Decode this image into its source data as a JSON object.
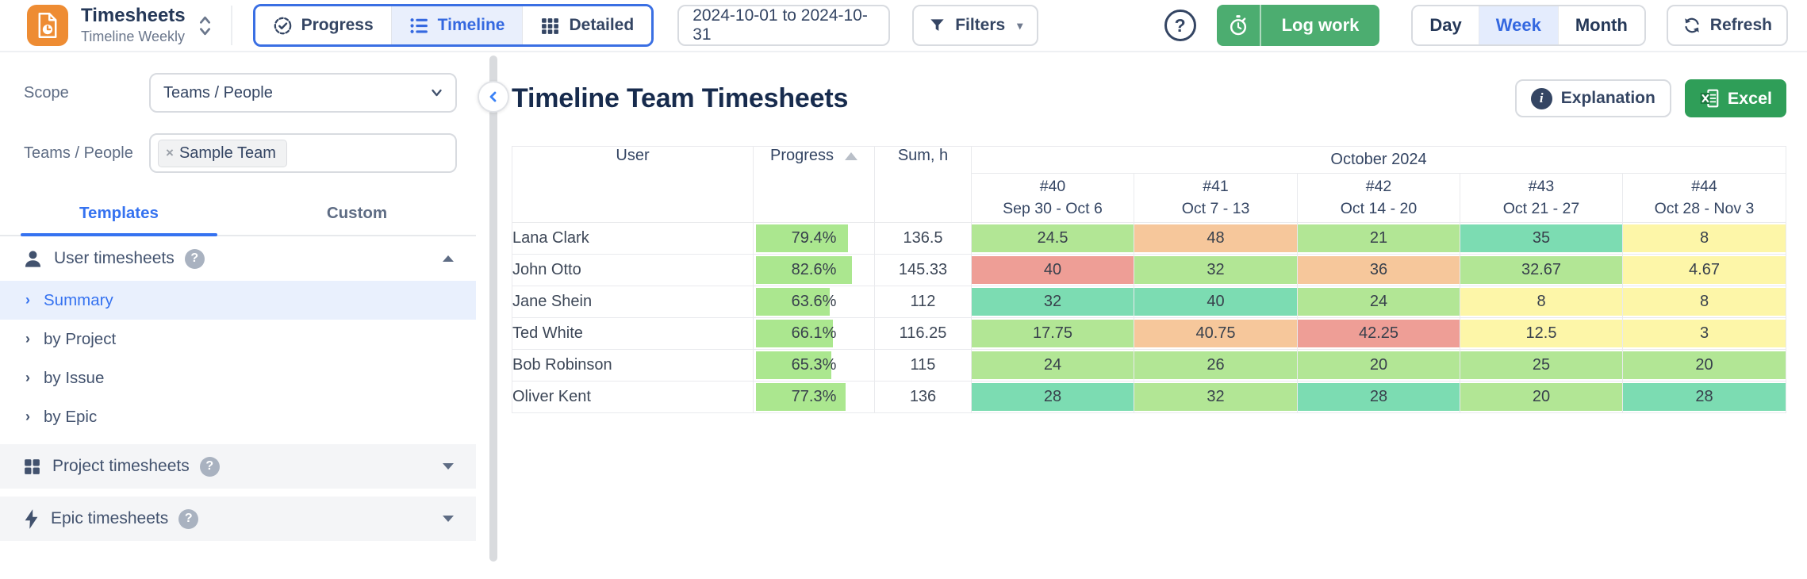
{
  "app": {
    "title": "Timesheets",
    "subtitle": "Timeline Weekly"
  },
  "topbar": {
    "views": [
      {
        "label": "Progress"
      },
      {
        "label": "Timeline"
      },
      {
        "label": "Detailed"
      }
    ],
    "date_range": "2024-10-01 to 2024-10-31",
    "filters_label": "Filters",
    "log_work_label": "Log work",
    "periods": [
      {
        "label": "Day"
      },
      {
        "label": "Week"
      },
      {
        "label": "Month"
      }
    ],
    "period_selected": "Week",
    "refresh_label": "Refresh",
    "help_glyph": "?"
  },
  "sidebar": {
    "scope_label": "Scope",
    "scope_value": "Teams / People",
    "teams_label": "Teams / People",
    "team_chip": "Sample Team",
    "chip_remove_glyph": "×",
    "tabs": [
      {
        "label": "Templates"
      },
      {
        "label": "Custom"
      }
    ],
    "active_tab": "Templates",
    "sections": [
      {
        "label": "User timesheets",
        "help_glyph": "?"
      },
      {
        "label": "Project timesheets",
        "help_glyph": "?"
      },
      {
        "label": "Epic timesheets",
        "help_glyph": "?"
      }
    ],
    "user_items": [
      {
        "label": "Summary",
        "selected": true
      },
      {
        "label": "by Project"
      },
      {
        "label": "by Issue"
      },
      {
        "label": "by Epic"
      }
    ],
    "item_chevron_glyph": "›"
  },
  "main": {
    "title": "Timeline Team Timesheets",
    "explanation_label": "Explanation",
    "excel_label": "Excel"
  },
  "table": {
    "columns": {
      "user": "User",
      "progress": "Progress",
      "sum": "Sum, h"
    },
    "month_header": "October 2024",
    "weeks": [
      {
        "num": "#40",
        "range": "Sep 30 - Oct 6"
      },
      {
        "num": "#41",
        "range": "Oct 7 - 13"
      },
      {
        "num": "#42",
        "range": "Oct 14 - 20"
      },
      {
        "num": "#43",
        "range": "Oct 21 - 27"
      },
      {
        "num": "#44",
        "range": "Oct 28 - Nov 3"
      }
    ],
    "cell_colors": {
      "light_green": "#b2e695",
      "teal": "#7cdcb2",
      "orange": "#f6c79b",
      "red": "#ee9e96",
      "yellow": "#fdf6a8",
      "progress_bar": "#abe78f"
    },
    "rows": [
      {
        "user": "Lana Clark",
        "progress": "79.4%",
        "progress_pct": "79.4",
        "sum": "136.5",
        "cells": [
          {
            "v": "24.5",
            "c": "#b2e695"
          },
          {
            "v": "48",
            "c": "#f6c79b"
          },
          {
            "v": "21",
            "c": "#b2e695"
          },
          {
            "v": "35",
            "c": "#7cdcb2"
          },
          {
            "v": "8",
            "c": "#fdf6a8"
          }
        ]
      },
      {
        "user": "John Otto",
        "progress": "82.6%",
        "progress_pct": "82.6",
        "sum": "145.33",
        "cells": [
          {
            "v": "40",
            "c": "#ee9e96"
          },
          {
            "v": "32",
            "c": "#b2e695"
          },
          {
            "v": "36",
            "c": "#f6c79b"
          },
          {
            "v": "32.67",
            "c": "#b2e695"
          },
          {
            "v": "4.67",
            "c": "#fdf6a8"
          }
        ]
      },
      {
        "user": "Jane Shein",
        "progress": "63.6%",
        "progress_pct": "63.6",
        "sum": "112",
        "cells": [
          {
            "v": "32",
            "c": "#7cdcb2"
          },
          {
            "v": "40",
            "c": "#7cdcb2"
          },
          {
            "v": "24",
            "c": "#b2e695"
          },
          {
            "v": "8",
            "c": "#fdf6a8"
          },
          {
            "v": "8",
            "c": "#fdf6a8"
          }
        ]
      },
      {
        "user": "Ted White",
        "progress": "66.1%",
        "progress_pct": "66.1",
        "sum": "116.25",
        "cells": [
          {
            "v": "17.75",
            "c": "#b2e695"
          },
          {
            "v": "40.75",
            "c": "#f6c79b"
          },
          {
            "v": "42.25",
            "c": "#ee9e96"
          },
          {
            "v": "12.5",
            "c": "#fdf6a8"
          },
          {
            "v": "3",
            "c": "#fdf6a8"
          }
        ]
      },
      {
        "user": "Bob Robinson",
        "progress": "65.3%",
        "progress_pct": "65.3",
        "sum": "115",
        "cells": [
          {
            "v": "24",
            "c": "#b2e695"
          },
          {
            "v": "26",
            "c": "#b2e695"
          },
          {
            "v": "20",
            "c": "#b2e695"
          },
          {
            "v": "25",
            "c": "#b2e695"
          },
          {
            "v": "20",
            "c": "#b2e695"
          }
        ]
      },
      {
        "user": "Oliver Kent",
        "progress": "77.3%",
        "progress_pct": "77.3",
        "sum": "136",
        "cells": [
          {
            "v": "28",
            "c": "#7cdcb2"
          },
          {
            "v": "32",
            "c": "#b2e695"
          },
          {
            "v": "28",
            "c": "#7cdcb2"
          },
          {
            "v": "20",
            "c": "#b2e695"
          },
          {
            "v": "28",
            "c": "#7cdcb2"
          }
        ]
      }
    ]
  }
}
